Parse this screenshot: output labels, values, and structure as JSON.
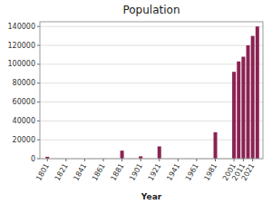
{
  "chart_data": {
    "type": "bar",
    "title": "Population",
    "xlabel": "Year",
    "x": [
      1801,
      1811,
      1821,
      1831,
      1841,
      1851,
      1861,
      1871,
      1881,
      1891,
      1901,
      1911,
      1921,
      1931,
      1941,
      1951,
      1961,
      1971,
      1981,
      1991,
      2001,
      2006,
      2011,
      2016,
      2021,
      2026
    ],
    "values": [
      2000,
      0,
      0,
      0,
      0,
      0,
      0,
      0,
      8500,
      0,
      2500,
      0,
      13000,
      0,
      0,
      0,
      0,
      0,
      28000,
      0,
      92000,
      103000,
      108000,
      120000,
      130000,
      140000
    ],
    "color": "#8B2252",
    "xlim": [
      1793,
      2032
    ],
    "xticks": [
      1801,
      1821,
      1841,
      1861,
      1881,
      1901,
      1921,
      1941,
      1961,
      1981,
      2001,
      2011,
      2021
    ],
    "ylim": [
      0,
      145000
    ],
    "yticks": [
      0,
      20000,
      40000,
      60000,
      80000,
      100000,
      120000,
      140000
    ],
    "grid": true
  }
}
